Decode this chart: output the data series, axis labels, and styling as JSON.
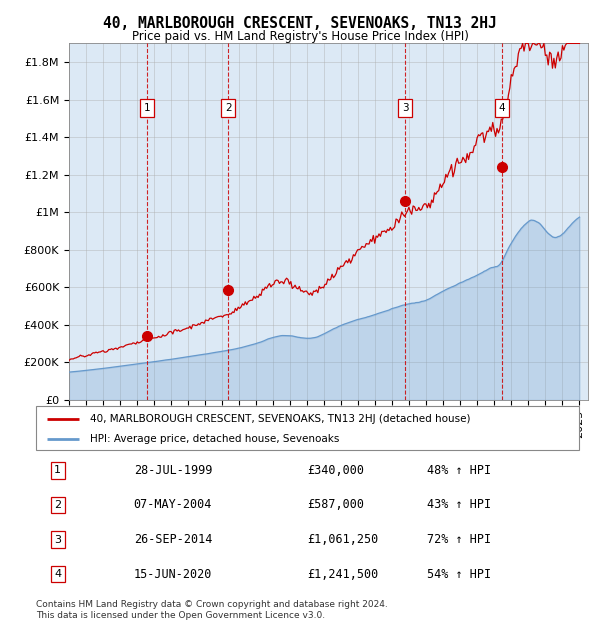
{
  "title": "40, MARLBOROUGH CRESCENT, SEVENOAKS, TN13 2HJ",
  "subtitle": "Price paid vs. HM Land Registry's House Price Index (HPI)",
  "hpi_label": "HPI: Average price, detached house, Sevenoaks",
  "property_label": "40, MARLBOROUGH CRESCENT, SEVENOAKS, TN13 2HJ (detached house)",
  "copyright": "Contains HM Land Registry data © Crown copyright and database right 2024.\nThis data is licensed under the Open Government Licence v3.0.",
  "sale_markers": [
    {
      "num": 1,
      "date": "28-JUL-1999",
      "price": 340000,
      "year": 1999.58,
      "pct": "48%"
    },
    {
      "num": 2,
      "date": "07-MAY-2004",
      "price": 587000,
      "year": 2004.36,
      "pct": "43%"
    },
    {
      "num": 3,
      "date": "26-SEP-2014",
      "price": 1061250,
      "year": 2014.75,
      "pct": "72%"
    },
    {
      "num": 4,
      "date": "15-JUN-2020",
      "price": 1241500,
      "year": 2020.46,
      "pct": "54%"
    }
  ],
  "ylim": [
    0,
    1900000
  ],
  "xlim_start": 1995,
  "xlim_end": 2025.5,
  "hpi_color": "#6699cc",
  "property_color": "#cc0000",
  "bg_color": "#dce9f5",
  "grid_color": "#aaaaaa",
  "marker_vline_color": "#cc0000",
  "title_fontsize": 11,
  "subtitle_fontsize": 9,
  "tick_fontsize": 8
}
